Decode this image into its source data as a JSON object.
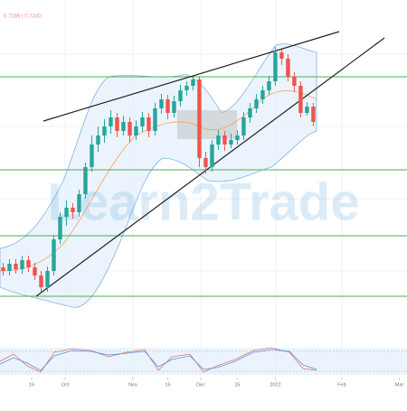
{
  "chart_data": {
    "type": "candlestick",
    "header": "0.7186 | 0.7240",
    "watermark": "Learn2Trade",
    "up_color": "#26a69a",
    "down_color": "#ef5350",
    "level_color": "#4caf50",
    "ylim": [
      0.722,
      0.76
    ],
    "xlim": [
      -0.5,
      63.8
    ],
    "xticks": [
      {
        "value": 4.5,
        "label": "15"
      },
      {
        "value": 9.8,
        "label": "Oct"
      },
      {
        "value": 20.5,
        "label": "Nov"
      },
      {
        "value": 26,
        "label": "15"
      },
      {
        "value": 31.2,
        "label": "Dec"
      },
      {
        "value": 37,
        "label": "15"
      },
      {
        "value": 43,
        "label": "2022"
      },
      {
        "value": 53.5,
        "label": "Feb"
      },
      {
        "value": 62.6,
        "label": "Mar"
      }
    ],
    "levels": [
      0.7515,
      0.7412,
      0.7339,
      0.7272
    ],
    "candles": [
      [
        0.7304,
        0.7309,
        0.7295,
        0.73
      ],
      [
        0.73,
        0.7313,
        0.7295,
        0.7308
      ],
      [
        0.7308,
        0.7313,
        0.7297,
        0.7302
      ],
      [
        0.7302,
        0.7317,
        0.7297,
        0.7312
      ],
      [
        0.7312,
        0.7317,
        0.7299,
        0.7304
      ],
      [
        0.7304,
        0.7309,
        0.729,
        0.7295
      ],
      [
        0.7295,
        0.73,
        0.7277,
        0.7282
      ],
      [
        0.7282,
        0.7305,
        0.7277,
        0.73
      ],
      [
        0.73,
        0.734,
        0.7295,
        0.7335
      ],
      [
        0.7335,
        0.7365,
        0.733,
        0.736
      ],
      [
        0.736,
        0.7378,
        0.735,
        0.737
      ],
      [
        0.737,
        0.7375,
        0.7358,
        0.7365
      ],
      [
        0.7365,
        0.739,
        0.736,
        0.7385
      ],
      [
        0.7385,
        0.742,
        0.738,
        0.7415
      ],
      [
        0.7415,
        0.745,
        0.741,
        0.744
      ],
      [
        0.744,
        0.746,
        0.7432,
        0.745
      ],
      [
        0.745,
        0.7468,
        0.7442,
        0.746
      ],
      [
        0.746,
        0.7478,
        0.7452,
        0.747
      ],
      [
        0.747,
        0.7475,
        0.7448,
        0.7455
      ],
      [
        0.7455,
        0.7472,
        0.745,
        0.7465
      ],
      [
        0.7465,
        0.747,
        0.7442,
        0.745
      ],
      [
        0.745,
        0.7467,
        0.7445,
        0.746
      ],
      [
        0.746,
        0.7476,
        0.7454,
        0.747
      ],
      [
        0.747,
        0.7475,
        0.7448,
        0.7455
      ],
      [
        0.7455,
        0.7486,
        0.745,
        0.748
      ],
      [
        0.748,
        0.7496,
        0.7474,
        0.749
      ],
      [
        0.749,
        0.7495,
        0.7468,
        0.7475
      ],
      [
        0.7475,
        0.7494,
        0.747,
        0.7488
      ],
      [
        0.7488,
        0.7506,
        0.7482,
        0.75
      ],
      [
        0.75,
        0.751,
        0.7494,
        0.7505
      ],
      [
        0.7505,
        0.7515,
        0.75,
        0.7512
      ],
      [
        0.7512,
        0.7515,
        0.7415,
        0.7425
      ],
      [
        0.7425,
        0.7432,
        0.7408,
        0.7415
      ],
      [
        0.7415,
        0.7445,
        0.741,
        0.744
      ],
      [
        0.744,
        0.7456,
        0.7434,
        0.745
      ],
      [
        0.745,
        0.7455,
        0.7433,
        0.744
      ],
      [
        0.744,
        0.7452,
        0.7436,
        0.7445
      ],
      [
        0.7445,
        0.7456,
        0.744,
        0.745
      ],
      [
        0.745,
        0.7476,
        0.7445,
        0.747
      ],
      [
        0.747,
        0.7486,
        0.7464,
        0.748
      ],
      [
        0.748,
        0.7496,
        0.7475,
        0.749
      ],
      [
        0.749,
        0.7505,
        0.7485,
        0.75
      ],
      [
        0.75,
        0.7516,
        0.7495,
        0.751
      ],
      [
        0.751,
        0.7548,
        0.7505,
        0.7542
      ],
      [
        0.7542,
        0.7545,
        0.7528,
        0.7535
      ],
      [
        0.7535,
        0.754,
        0.751,
        0.7515
      ],
      [
        0.7515,
        0.752,
        0.7498,
        0.7505
      ],
      [
        0.7505,
        0.751,
        0.747,
        0.7475
      ],
      [
        0.7475,
        0.7487,
        0.7472,
        0.7482
      ],
      [
        0.7482,
        0.7486,
        0.746,
        0.7465
      ]
    ]
  }
}
